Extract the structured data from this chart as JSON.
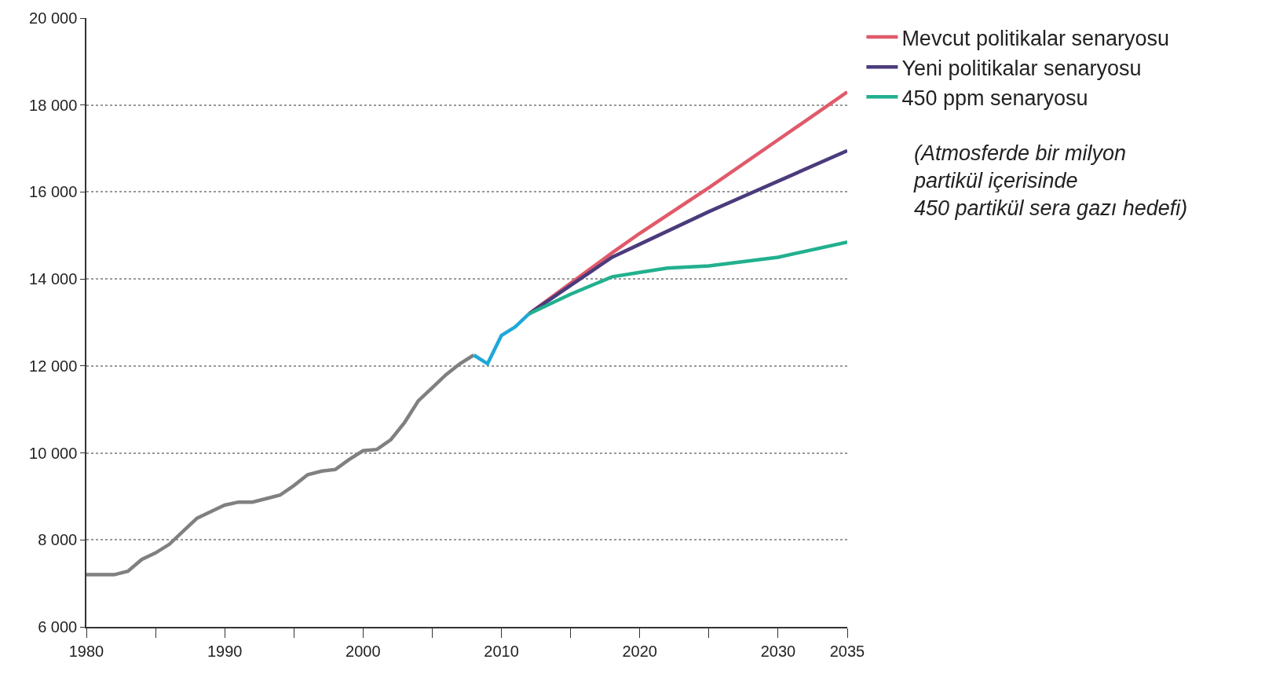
{
  "chart_data": {
    "type": "line",
    "xlim": [
      1980,
      2035
    ],
    "ylim": [
      6000,
      20000
    ],
    "xticks": [
      1980,
      {
        "value": 1985,
        "label": null
      },
      1990,
      {
        "value": 1995,
        "label": null
      },
      2000,
      {
        "value": 2005,
        "label": null
      },
      2010,
      {
        "value": 2015,
        "label": null
      },
      2020,
      {
        "value": 2025,
        "label": null
      },
      2030,
      2035
    ],
    "yticks": [
      {
        "value": 6000,
        "label": "6 000"
      },
      {
        "value": 8000,
        "label": "8 000"
      },
      {
        "value": 10000,
        "label": "10 000"
      },
      {
        "value": 12000,
        "label": "12 000"
      },
      {
        "value": 14000,
        "label": "14 000"
      },
      {
        "value": 16000,
        "label": "16 000"
      },
      {
        "value": 18000,
        "label": "18 000"
      },
      {
        "value": 20000,
        "label": "20 000"
      }
    ],
    "grid": "y",
    "legend": "top right",
    "marker": "none",
    "line_style": "solid",
    "annotations": [
      "(Atmosferde bir milyon\npartikül içerisinde\n450 partikül sera gazı hedefi)"
    ],
    "series": [
      {
        "color": "#808080",
        "x": [
          1980,
          1981,
          1982,
          1983,
          1984,
          1985,
          1986,
          1987,
          1988,
          1989,
          1990,
          1991,
          1992,
          1993,
          1994,
          1995,
          1996,
          1997,
          1998,
          1999,
          2000,
          2001,
          2002,
          2003,
          2004,
          2005,
          2006,
          2007,
          2008
        ],
        "values": [
          7200,
          7200,
          7200,
          7280,
          7550,
          7700,
          7900,
          8200,
          8500,
          8650,
          8800,
          8870,
          8870,
          8950,
          9030,
          9250,
          9500,
          9580,
          9620,
          9850,
          10050,
          10080,
          10300,
          10700,
          11200,
          11500,
          11800,
          12050,
          12250
        ]
      },
      {
        "color": "#1fa8d8",
        "x": [
          2008,
          2009,
          2010,
          2011,
          2012
        ],
        "values": [
          12250,
          12050,
          12700,
          12900,
          13200
        ]
      },
      {
        "name": "Mevcut politikalar senaryosu",
        "color": "#e05a6a",
        "x": [
          2012,
          2015,
          2018,
          2020,
          2025,
          2030,
          2035
        ],
        "values": [
          13200,
          13900,
          14600,
          15050,
          16100,
          17200,
          18300
        ]
      },
      {
        "name": "Yeni politikalar senaryosu",
        "color": "#4b3b7c",
        "x": [
          2012,
          2015,
          2018,
          2020,
          2025,
          2030,
          2035
        ],
        "values": [
          13200,
          13850,
          14500,
          14800,
          15550,
          16250,
          16950
        ]
      },
      {
        "name": "450 ppm senaryosu",
        "color": "#22b08f",
        "x": [
          2012,
          2015,
          2018,
          2020,
          2022,
          2025,
          2030,
          2035
        ],
        "values": [
          13200,
          13650,
          14050,
          14150,
          14250,
          14300,
          14500,
          14850
        ]
      }
    ]
  }
}
